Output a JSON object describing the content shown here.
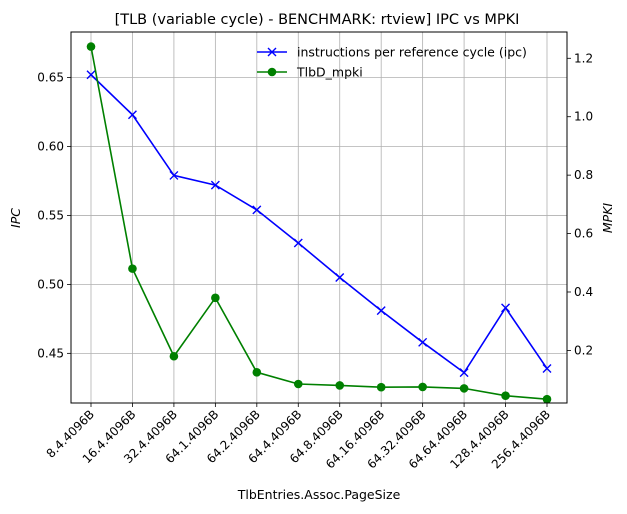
{
  "chart_data": {
    "type": "line",
    "title": "[TLB (variable cycle) - BENCHMARK: rtview]  IPC vs MPKI",
    "xlabel": "TlbEntries.Assoc.PageSize",
    "ylabel_left": "IPC",
    "ylabel_right": "MPKI",
    "categories": [
      "8.4.4096B",
      "16.4.4096B",
      "32.4.4096B",
      "64.1.4096B",
      "64.2.4096B",
      "64.4.4096B",
      "64.8.4096B",
      "64.16.4096B",
      "64.32.4096B",
      "64.64.4096B",
      "128.4.4096B",
      "256.4.4096B"
    ],
    "ylim_left": [
      0.414,
      0.683
    ],
    "ylim_right": [
      0.02,
      1.29
    ],
    "yticks_left": [
      "0.45",
      "0.50",
      "0.55",
      "0.60",
      "0.65"
    ],
    "yticks_right": [
      "0.2",
      "0.4",
      "0.6",
      "0.8",
      "1.0",
      "1.2"
    ],
    "grid": true,
    "legend_position": "top-right",
    "series": [
      {
        "name": "instructions per reference cycle (ipc)",
        "axis": "left",
        "color": "#0000ff",
        "marker": "x",
        "values": [
          0.652,
          0.623,
          0.579,
          0.572,
          0.554,
          0.53,
          0.505,
          0.481,
          0.458,
          0.436,
          0.483,
          0.439
        ]
      },
      {
        "name": "TlbD_mpki",
        "axis": "right",
        "color": "#008000",
        "marker": "o",
        "values": [
          1.24,
          0.48,
          0.18,
          0.38,
          0.125,
          0.085,
          0.08,
          0.074,
          0.075,
          0.07,
          0.045,
          0.033
        ]
      }
    ]
  }
}
